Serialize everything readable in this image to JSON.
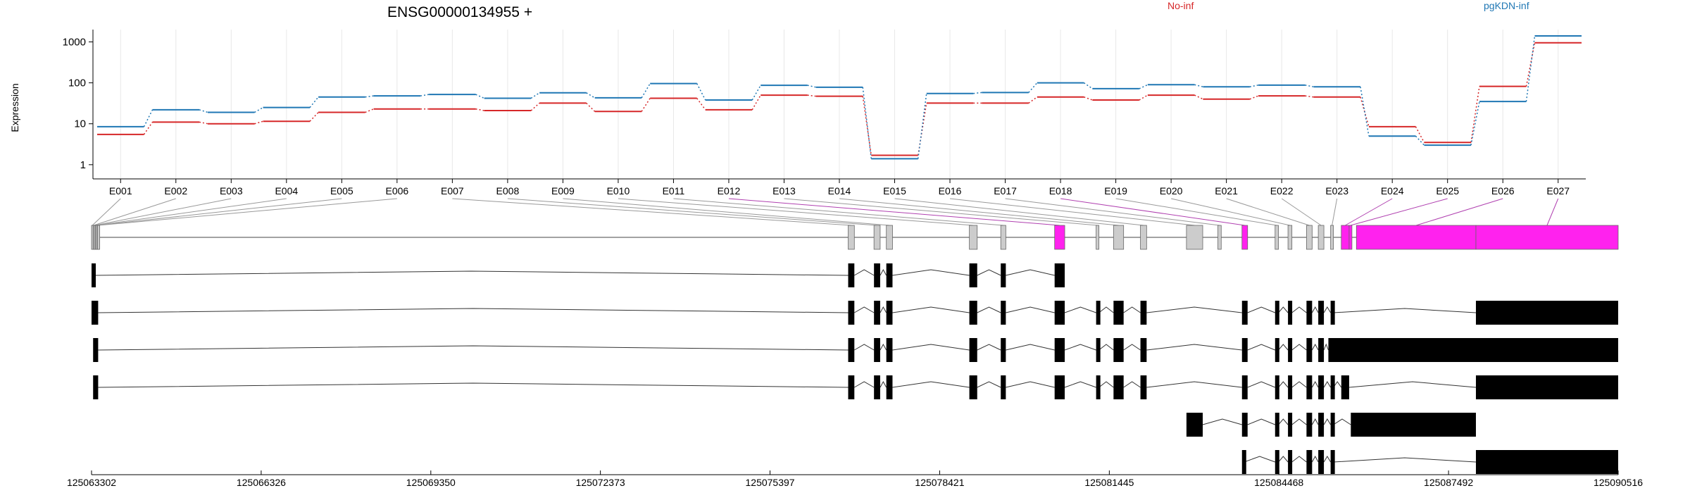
{
  "chart_data": {
    "type": "line",
    "title": "ENSG00000134955 +",
    "ylabel": "Expression",
    "yscale": "log",
    "ylim": [
      0.45,
      2000
    ],
    "yticks": [
      1,
      10,
      100,
      1000
    ],
    "ytick_labels": [
      "1",
      "10",
      "100",
      "1000"
    ],
    "grid": "vertical",
    "legend_placement": "top, inline labels",
    "categories": [
      "E001",
      "E002",
      "E003",
      "E004",
      "E005",
      "E006",
      "E007",
      "E008",
      "E009",
      "E010",
      "E011",
      "E012",
      "E013",
      "E014",
      "E015",
      "E016",
      "E017",
      "E018",
      "E019",
      "E020",
      "E021",
      "E022",
      "E023",
      "E024",
      "E025",
      "E026",
      "E027"
    ],
    "series": [
      {
        "name": "No-inf",
        "color": "#d62728",
        "values": [
          5.5,
          11,
          10,
          11.5,
          19,
          23,
          23,
          21,
          32,
          20,
          42,
          22,
          50,
          47,
          1.7,
          32,
          32,
          45,
          38,
          50,
          40,
          48,
          45,
          8.5,
          3.5,
          82,
          950
        ]
      },
      {
        "name": "pgKDN-inf",
        "color": "#1f77b4",
        "values": [
          8.5,
          22,
          19,
          25,
          45,
          48,
          52,
          42,
          57,
          43,
          96,
          38,
          87,
          78,
          1.4,
          55,
          58,
          100,
          72,
          90,
          80,
          88,
          80,
          5,
          3,
          35,
          1400
        ]
      }
    ],
    "genomic_axis": {
      "range": [
        125063302,
        125090516
      ],
      "ticks": [
        125063302,
        125066326,
        125069350,
        125072373,
        125075397,
        125078421,
        125081445,
        125084468,
        125087492,
        125090516
      ],
      "tick_labels": [
        "125063302",
        "125066326",
        "125069350",
        "125072373",
        "125075397",
        "125078421",
        "125081445",
        "125084468",
        "125087492",
        "125090516"
      ]
    },
    "exon_map": {
      "exons": [
        {
          "id": "E001",
          "start": 125063302,
          "end": 125063330,
          "dex": false
        },
        {
          "id": "E002",
          "start": 125063330,
          "end": 125063350,
          "dex": false
        },
        {
          "id": "E003",
          "start": 125063350,
          "end": 125063370,
          "dex": false
        },
        {
          "id": "E004",
          "start": 125063370,
          "end": 125063390,
          "dex": false
        },
        {
          "id": "E005",
          "start": 125063390,
          "end": 125063410,
          "dex": false
        },
        {
          "id": "E006",
          "start": 125063410,
          "end": 125063425,
          "dex": false
        },
        {
          "id": "E007",
          "start": 125076790,
          "end": 125076900,
          "dex": false
        },
        {
          "id": "E008",
          "start": 125077250,
          "end": 125077360,
          "dex": false
        },
        {
          "id": "E009",
          "start": 125077470,
          "end": 125077580,
          "dex": false
        },
        {
          "id": "E010",
          "start": 125078950,
          "end": 125079090,
          "dex": false
        },
        {
          "id": "E011",
          "start": 125079510,
          "end": 125079600,
          "dex": false
        },
        {
          "id": "E012",
          "start": 125080470,
          "end": 125080650,
          "dex": true
        },
        {
          "id": "E013",
          "start": 125081210,
          "end": 125081260,
          "dex": false
        },
        {
          "id": "E014",
          "start": 125081520,
          "end": 125081700,
          "dex": false
        },
        {
          "id": "E015",
          "start": 125082000,
          "end": 125082110,
          "dex": false
        },
        {
          "id": "E016",
          "start": 125082820,
          "end": 125083110,
          "dex": false
        },
        {
          "id": "E017",
          "start": 125083380,
          "end": 125083440,
          "dex": false
        },
        {
          "id": "E018",
          "start": 125083810,
          "end": 125083910,
          "dex": true
        },
        {
          "id": "E019",
          "start": 125084400,
          "end": 125084460,
          "dex": false
        },
        {
          "id": "E020",
          "start": 125084630,
          "end": 125084700,
          "dex": false
        },
        {
          "id": "E021",
          "start": 125084960,
          "end": 125085060,
          "dex": false
        },
        {
          "id": "E022",
          "start": 125085170,
          "end": 125085270,
          "dex": false
        },
        {
          "id": "E023",
          "start": 125085390,
          "end": 125085440,
          "dex": false
        },
        {
          "id": "E024",
          "start": 125085580,
          "end": 125085720,
          "dex": true
        },
        {
          "id": "E025",
          "start": 125085720,
          "end": 125085770,
          "dex": true
        },
        {
          "id": "E026",
          "start": 125085850,
          "end": 125087980,
          "dex": true
        },
        {
          "id": "E027",
          "start": 125087980,
          "end": 125090516,
          "dex": true
        }
      ]
    },
    "transcripts": [
      {
        "exons": [
          [
            125063302,
            125063350
          ],
          [
            125076790,
            125076900
          ],
          [
            125077250,
            125077360
          ],
          [
            125077470,
            125077580
          ],
          [
            125078950,
            125079090
          ],
          [
            125079510,
            125079600
          ],
          [
            125080470,
            125080650
          ]
        ]
      },
      {
        "exons": [
          [
            125063302,
            125063420
          ],
          [
            125076790,
            125076900
          ],
          [
            125077250,
            125077360
          ],
          [
            125077470,
            125077580
          ],
          [
            125078950,
            125079090
          ],
          [
            125079510,
            125079600
          ],
          [
            125080470,
            125080650
          ],
          [
            125081210,
            125081260
          ],
          [
            125081520,
            125081700
          ],
          [
            125082000,
            125082110
          ],
          [
            125083810,
            125083910
          ],
          [
            125084400,
            125084460
          ],
          [
            125084630,
            125084700
          ],
          [
            125084960,
            125085060
          ],
          [
            125085170,
            125085270
          ],
          [
            125085390,
            125085440
          ],
          [
            125087980,
            125090516
          ]
        ]
      },
      {
        "exons": [
          [
            125063330,
            125063420
          ],
          [
            125076790,
            125076900
          ],
          [
            125077250,
            125077360
          ],
          [
            125077470,
            125077580
          ],
          [
            125078950,
            125079090
          ],
          [
            125079510,
            125079600
          ],
          [
            125080470,
            125080650
          ],
          [
            125081210,
            125081260
          ],
          [
            125081520,
            125081700
          ],
          [
            125082000,
            125082110
          ],
          [
            125083810,
            125083910
          ],
          [
            125084400,
            125084460
          ],
          [
            125084630,
            125084700
          ],
          [
            125084960,
            125085060
          ],
          [
            125085170,
            125085270
          ],
          [
            125085350,
            125090516
          ]
        ]
      },
      {
        "exons": [
          [
            125063330,
            125063420
          ],
          [
            125076790,
            125076900
          ],
          [
            125077250,
            125077360
          ],
          [
            125077470,
            125077580
          ],
          [
            125078950,
            125079090
          ],
          [
            125079510,
            125079600
          ],
          [
            125080470,
            125080650
          ],
          [
            125081210,
            125081260
          ],
          [
            125081520,
            125081700
          ],
          [
            125082000,
            125082110
          ],
          [
            125083810,
            125083910
          ],
          [
            125084400,
            125084460
          ],
          [
            125084630,
            125084700
          ],
          [
            125084960,
            125085060
          ],
          [
            125085170,
            125085270
          ],
          [
            125085390,
            125085440
          ],
          [
            125085580,
            125085720
          ],
          [
            125087980,
            125090516
          ]
        ]
      },
      {
        "exons": [
          [
            125082820,
            125083110
          ],
          [
            125083810,
            125083910
          ],
          [
            125084400,
            125084460
          ],
          [
            125084630,
            125084700
          ],
          [
            125084960,
            125085060
          ],
          [
            125085170,
            125085270
          ],
          [
            125085390,
            125085440
          ],
          [
            125085750,
            125087980
          ]
        ]
      },
      {
        "exons": [
          [
            125083810,
            125083850
          ],
          [
            125084400,
            125084460
          ],
          [
            125084630,
            125084700
          ],
          [
            125084960,
            125085060
          ],
          [
            125085170,
            125085270
          ],
          [
            125085390,
            125085440
          ],
          [
            125087980,
            125090516
          ]
        ]
      }
    ]
  }
}
